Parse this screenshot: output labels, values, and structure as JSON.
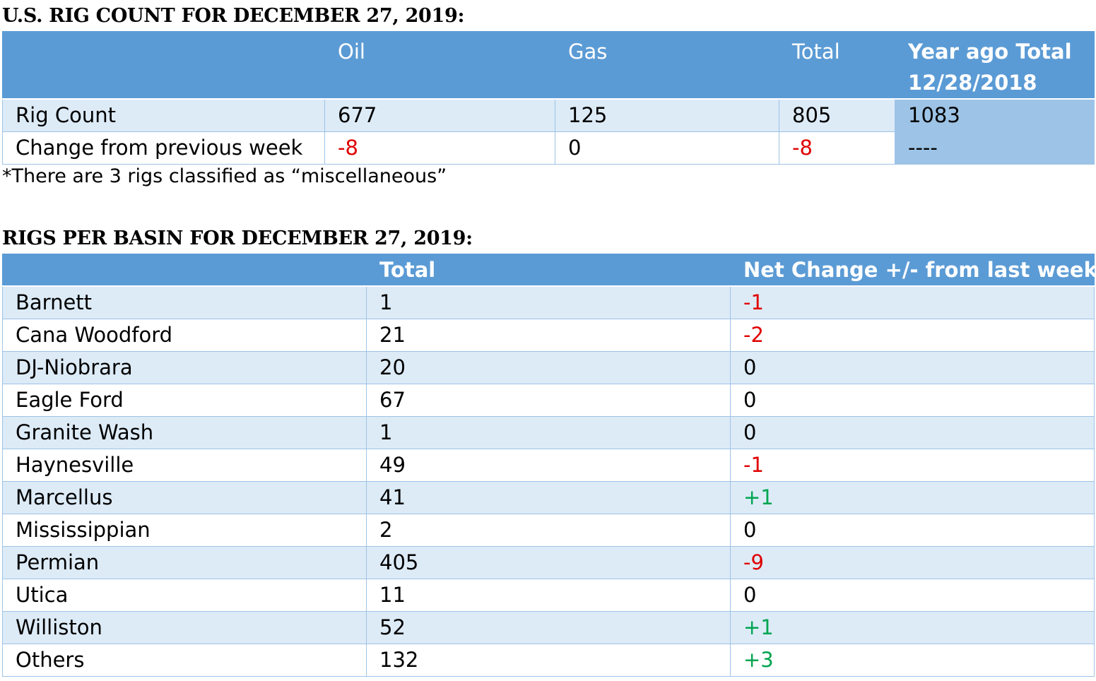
{
  "rig_section": {
    "heading": "U.S. RIG COUNT FOR DECEMBER 27, 2019:",
    "columns": [
      "",
      "Oil",
      "Gas",
      "Total",
      "Year ago Total 12/28/2018"
    ],
    "year_ago_header_line1": "Year ago Total",
    "year_ago_header_line2": "12/28/2018",
    "rows": [
      {
        "label": "Rig Count",
        "oil": "677",
        "gas": "125",
        "total": "805",
        "year_ago": "1083"
      },
      {
        "label": "Change from previous week",
        "oil": "-8",
        "gas": "0",
        "total": "-8",
        "year_ago": "----"
      }
    ],
    "note": "*There are 3 rigs classified as “miscellaneous”"
  },
  "basin_section": {
    "heading": "RIGS PER BASIN FOR DECEMBER 27, 2019:",
    "columns": [
      "",
      "Total",
      "Net Change +/- from last week"
    ],
    "rows": [
      {
        "basin": "Barnett",
        "total": "1",
        "change": "-1"
      },
      {
        "basin": "Cana Woodford",
        "total": "21",
        "change": "-2"
      },
      {
        "basin": "DJ-Niobrara",
        "total": "20",
        "change": "0"
      },
      {
        "basin": "Eagle Ford",
        "total": "67",
        "change": "0"
      },
      {
        "basin": "Granite Wash",
        "total": "1",
        "change": "0"
      },
      {
        "basin": "Haynesville",
        "total": "49",
        "change": "-1"
      },
      {
        "basin": "Marcellus",
        "total": "41",
        "change": "+1"
      },
      {
        "basin": "Mississippian",
        "total": "2",
        "change": "0"
      },
      {
        "basin": "Permian",
        "total": "405",
        "change": "-9"
      },
      {
        "basin": "Utica",
        "total": "11",
        "change": "0"
      },
      {
        "basin": "Williston",
        "total": "52",
        "change": "+1"
      },
      {
        "basin": "Others",
        "total": "132",
        "change": "+3"
      }
    ]
  },
  "colors": {
    "header_bg": "#5b9bd5",
    "band_light": "#ddebf7",
    "year_ago_cell": "#9dc3e6",
    "negative": "#e00000",
    "positive": "#00a550"
  }
}
